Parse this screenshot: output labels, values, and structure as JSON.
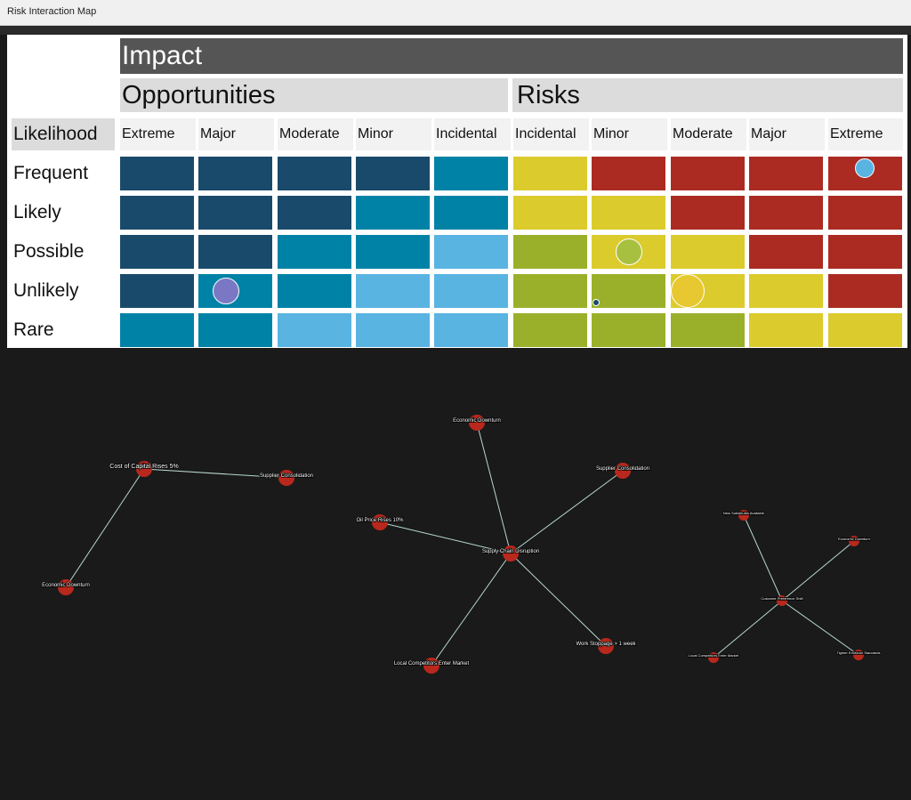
{
  "window": {
    "title": "Risk Interaction Map"
  },
  "matrix": {
    "impact_label": "Impact",
    "opportunities_label": "Opportunities",
    "risks_label": "Risks",
    "likelihood_label": "Likelihood",
    "columns": [
      "Extreme",
      "Major",
      "Moderate",
      "Minor",
      "Incidental",
      "Incidental",
      "Minor",
      "Moderate",
      "Major",
      "Extreme"
    ],
    "rows": [
      "Frequent",
      "Likely",
      "Possible",
      "Unlikely",
      "Rare"
    ],
    "colors": {
      "D": "#1a4a6b",
      "T": "#0082a6",
      "L": "#5ab4e2",
      "G": "#9bb02a",
      "Y": "#dccb2c",
      "R": "#ab2b22"
    },
    "cells": [
      [
        "D",
        "D",
        "D",
        "D",
        "T",
        "Y",
        "R",
        "R",
        "R",
        "R"
      ],
      [
        "D",
        "D",
        "D",
        "T",
        "T",
        "Y",
        "Y",
        "R",
        "R",
        "R"
      ],
      [
        "D",
        "D",
        "T",
        "T",
        "L",
        "G",
        "Y",
        "Y",
        "R",
        "R"
      ],
      [
        "D",
        "T",
        "T",
        "L",
        "L",
        "G",
        "G",
        "Y",
        "Y",
        "R"
      ],
      [
        "T",
        "T",
        "L",
        "L",
        "L",
        "G",
        "G",
        "G",
        "Y",
        "Y"
      ]
    ],
    "bubbles": [
      {
        "row": 0,
        "col": 9,
        "color": "#5ab4e2",
        "size": "small"
      },
      {
        "row": 2,
        "col": 6,
        "color": "#a8c040",
        "size": "medium"
      },
      {
        "row": 3,
        "col": 1,
        "color": "#7a78c4",
        "size": "medium"
      },
      {
        "row": 3,
        "col": 7,
        "color": "#e8c830",
        "size": "large"
      },
      {
        "row": 3,
        "col": 6,
        "color": "#1a4a6b",
        "size": "tiny"
      }
    ]
  },
  "network": {
    "node_color": "#b8281c",
    "edge_color": "#b8d8d0",
    "clusters": [
      {
        "hub": "Cost of Capital Rises 5%",
        "nodes": [
          "Cost of Capital Rises 5%",
          "Supplier Consolidation",
          "Economic Downturn"
        ],
        "edges": [
          [
            0,
            1
          ],
          [
            0,
            2
          ]
        ]
      },
      {
        "hub": "Supply Chain Disruption",
        "nodes": [
          "Supply Chain Disruption",
          "Economic Downturn",
          "Supplier Consolidation",
          "Oil Price Rises 10%",
          "Work Stoppage > 1 week",
          "Local Competitors Enter Market"
        ],
        "edges": [
          [
            0,
            1
          ],
          [
            0,
            2
          ],
          [
            0,
            3
          ],
          [
            0,
            4
          ],
          [
            0,
            5
          ]
        ]
      },
      {
        "hub": "Customer Preference Shift",
        "nodes": [
          "Customer Preference Shift",
          "New Substitutes Available",
          "Economic Downturn",
          "Local Competitors Enter Market",
          "Tighter Emission Standards"
        ],
        "edges": [
          [
            0,
            1
          ],
          [
            0,
            2
          ],
          [
            0,
            3
          ],
          [
            0,
            4
          ]
        ]
      }
    ]
  }
}
